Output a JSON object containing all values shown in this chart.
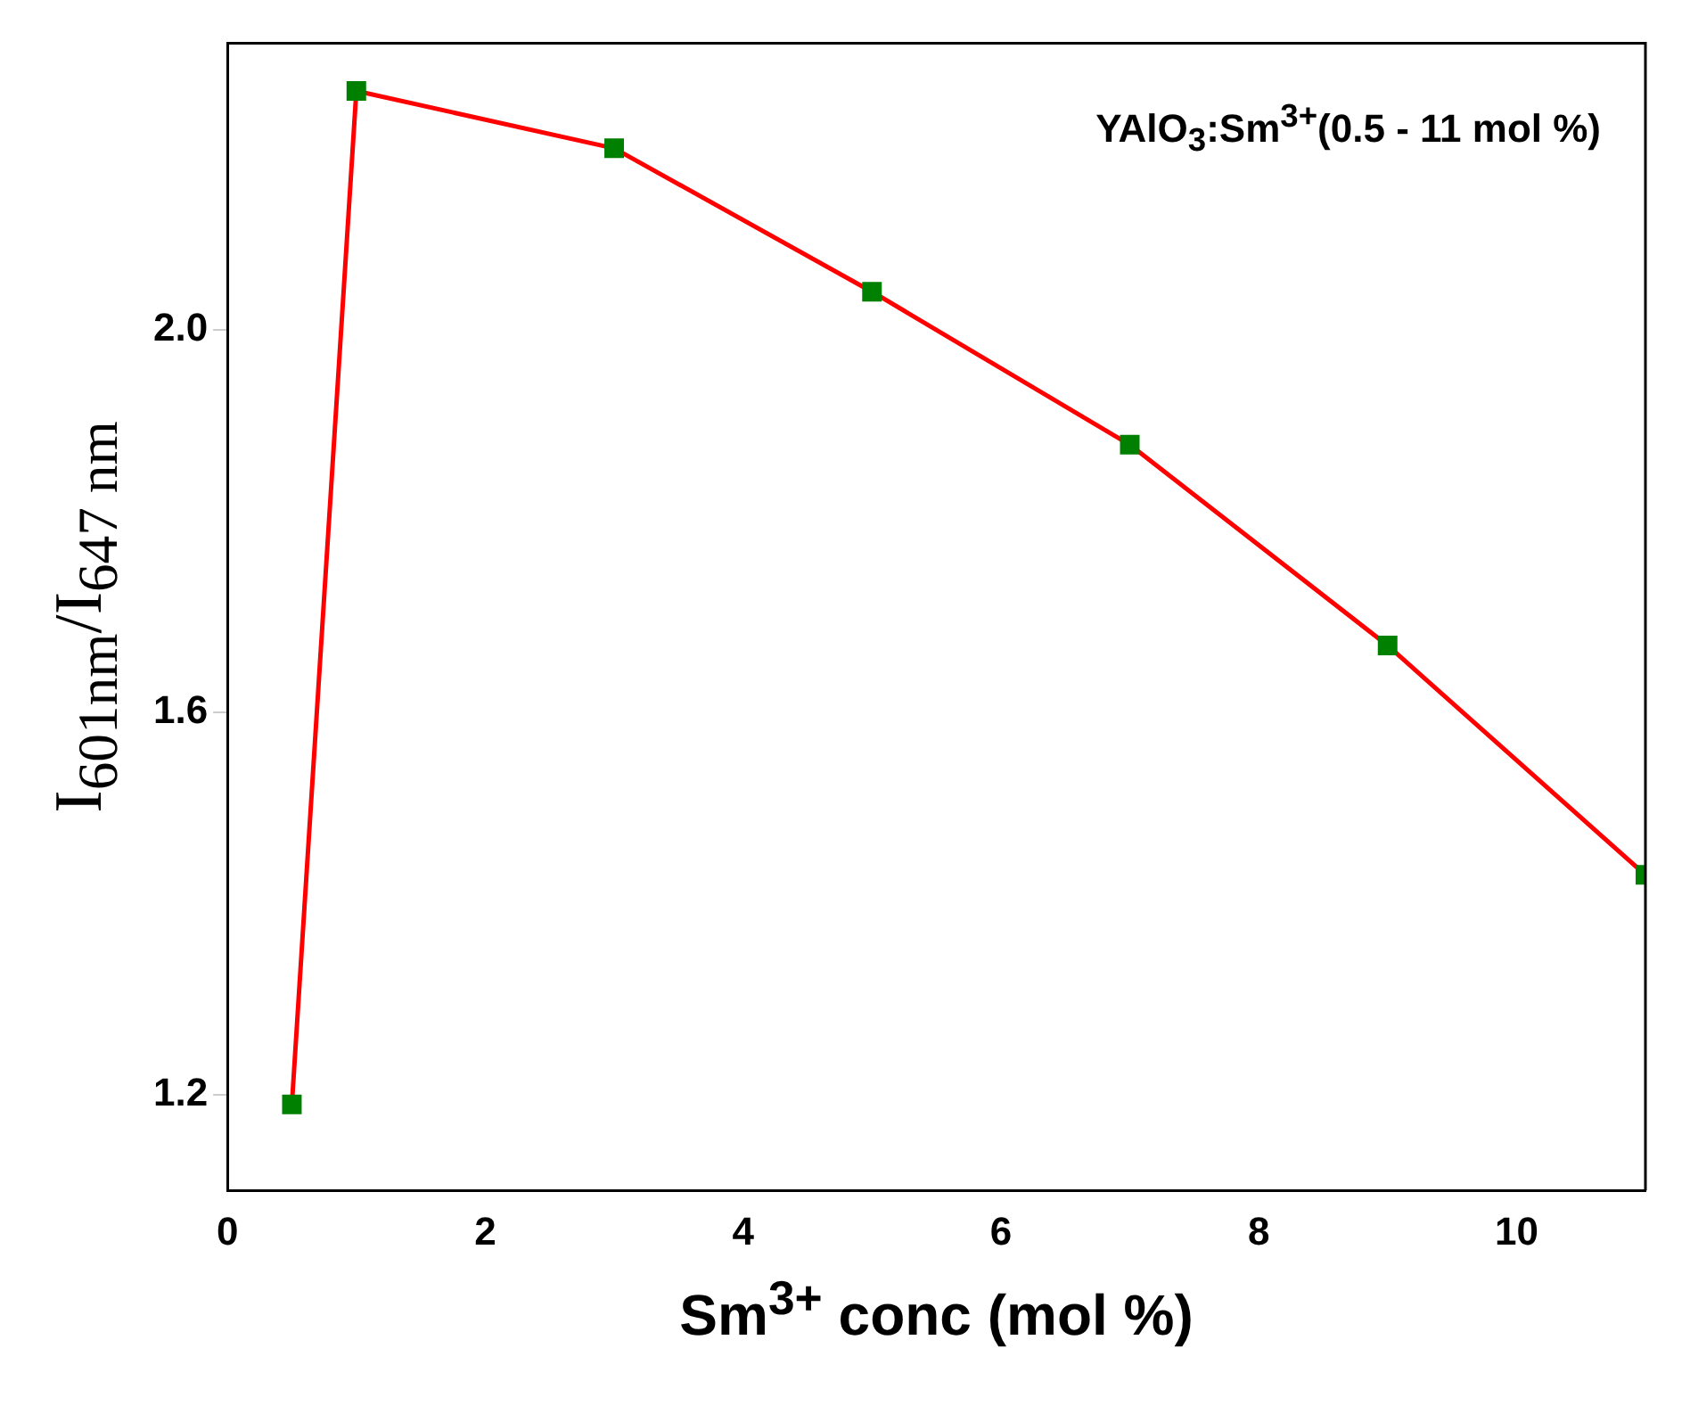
{
  "chart_data": {
    "type": "line",
    "xlabel": "Sm$^{3+}$ conc (mol %)",
    "ylabel": "I$_{601nm}$/I$_{647 nm}$",
    "annotations": [
      "YAlO$_{3}$:Sm$^{3+}$(0.5 - 11 mol %)"
    ],
    "x": [
      0.5,
      1,
      3,
      5,
      7,
      9,
      11
    ],
    "series": [
      {
        "color": "#ff0000",
        "colors": [
          "#008000",
          "#008000",
          "#008000",
          "#008000",
          "#008000",
          "#008000",
          "#008000"
        ],
        "values": [
          1.19,
          2.25,
          2.19,
          2.04,
          1.88,
          1.67,
          1.43
        ]
      }
    ],
    "xlim": [
      0,
      11
    ],
    "xticks": [
      0,
      2,
      4,
      6,
      8,
      10
    ],
    "ylim": [
      1.1,
      2.3
    ],
    "yticks": [
      1.2,
      1.6,
      {
        "value": 2,
        "label": "2.0"
      }
    ],
    "grid": false,
    "legend": false,
    "marker": "square",
    "line_style": "solid"
  }
}
